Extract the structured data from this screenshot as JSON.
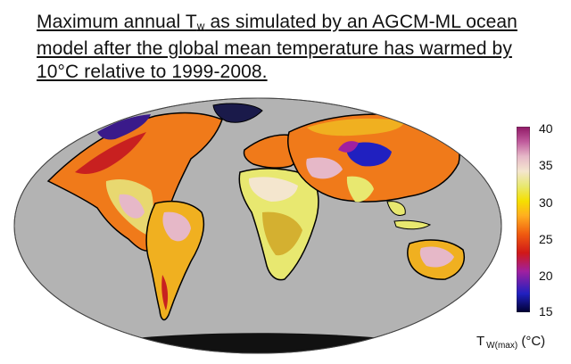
{
  "caption": {
    "prefix": "Maximum annual T",
    "sub": "w",
    "rest": " as simulated by an AGCM-ML ocean model after the global mean temperature has warmed by 10°C relative to 1999-2008."
  },
  "map": {
    "projection": "mollweide",
    "ocean_color": "#b3b3b3",
    "land_mask_color": "#000000"
  },
  "colorbar": {
    "ticks": [
      "40",
      "35",
      "30",
      "25",
      "20",
      "15"
    ],
    "min": 15,
    "max": 40,
    "label_main": "T",
    "label_sub": "W(max)",
    "label_unit": "(°C)",
    "stops": [
      "#000030",
      "#2020c0",
      "#a020a0",
      "#d01818",
      "#f05a10",
      "#ffae20",
      "#f5e000",
      "#e8e870",
      "#f4e6ce",
      "#e6b8c8",
      "#c05a9c",
      "#901866"
    ]
  }
}
